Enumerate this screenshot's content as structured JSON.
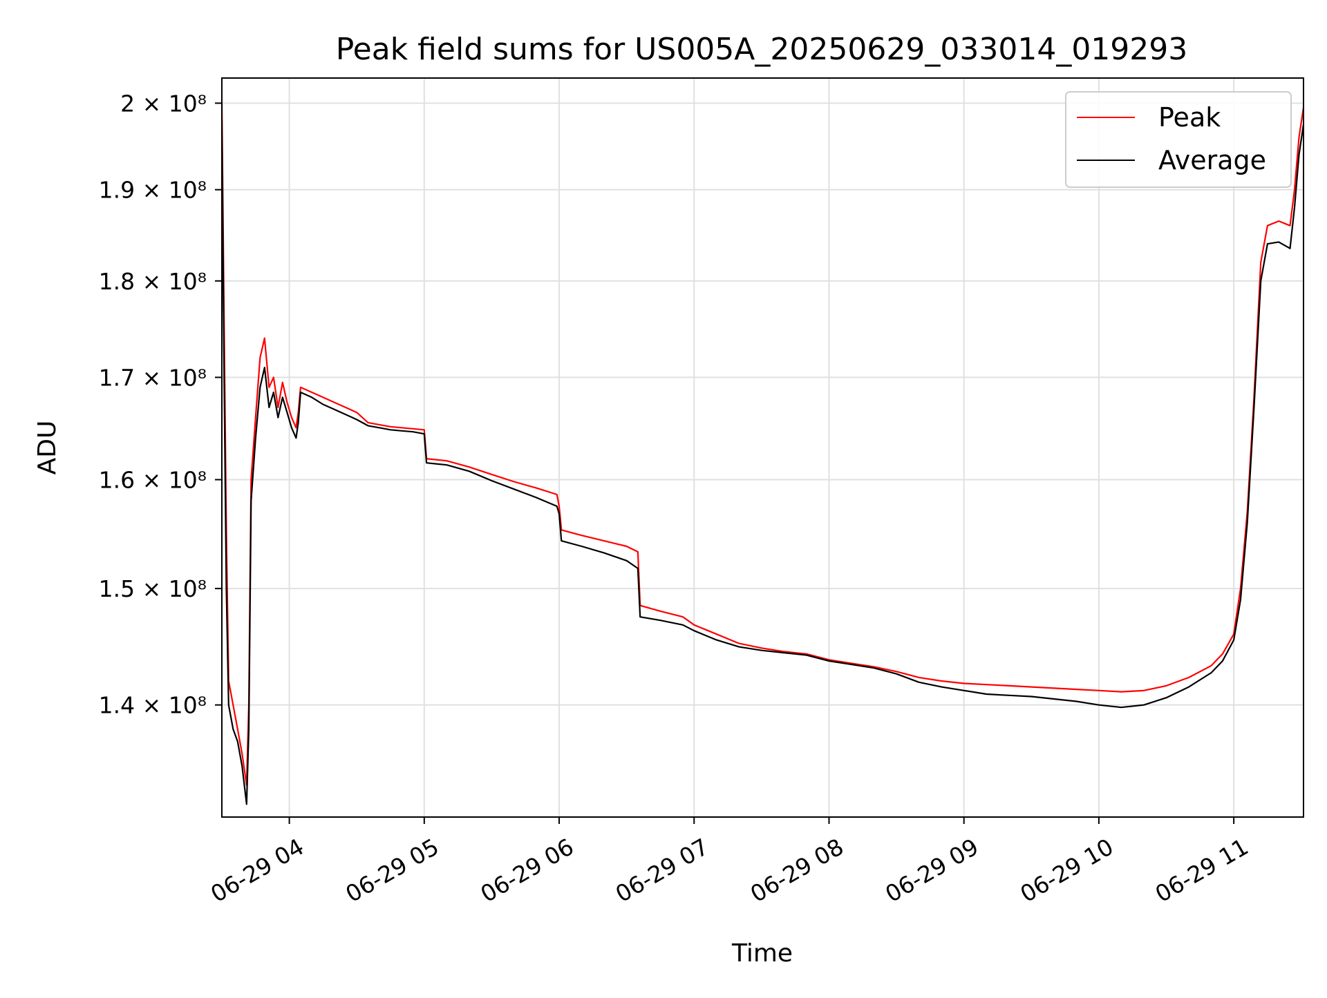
{
  "chart_data": {
    "type": "line",
    "title": "Peak field sums for US005A_20250629_033014_019293",
    "xlabel": "Time",
    "ylabel": "ADU",
    "y_scale": "log",
    "ylim": [
      131000000,
      203000000
    ],
    "xlim": [
      "06-29 03:30",
      "06-29 11:31"
    ],
    "grid": true,
    "legend_position": "top-right",
    "x_ticks": [
      {
        "value": "06-29 04:00",
        "label": "06-29 04"
      },
      {
        "value": "06-29 05:00",
        "label": "06-29 05"
      },
      {
        "value": "06-29 06:00",
        "label": "06-29 06"
      },
      {
        "value": "06-29 07:00",
        "label": "06-29 07"
      },
      {
        "value": "06-29 08:00",
        "label": "06-29 08"
      },
      {
        "value": "06-29 09:00",
        "label": "06-29 09"
      },
      {
        "value": "06-29 10:00",
        "label": "06-29 10"
      },
      {
        "value": "06-29 11:00",
        "label": "06-29 11"
      }
    ],
    "y_ticks": [
      {
        "value": 140000000,
        "label": "1.4 × 10⁸"
      },
      {
        "value": 150000000,
        "label": "1.5 × 10⁸"
      },
      {
        "value": 160000000,
        "label": "1.6 × 10⁸"
      },
      {
        "value": 170000000,
        "label": "1.7 × 10⁸"
      },
      {
        "value": 180000000,
        "label": "1.8 × 10⁸"
      },
      {
        "value": 190000000,
        "label": "1.9 × 10⁸"
      },
      {
        "value": 200000000,
        "label": "2 × 10⁸"
      }
    ],
    "series": [
      {
        "name": "Peak",
        "color": "#ff0000",
        "points": [
          [
            "06-29 03:30",
            200000000
          ],
          [
            "06-29 03:31",
            175000000
          ],
          [
            "06-29 03:32",
            155000000
          ],
          [
            "06-29 03:33",
            142000000
          ],
          [
            "06-29 03:35",
            140000000
          ],
          [
            "06-29 03:37",
            138000000
          ],
          [
            "06-29 03:39",
            136000000
          ],
          [
            "06-29 03:41",
            133500000
          ],
          [
            "06-29 03:42",
            140000000
          ],
          [
            "06-29 03:43",
            160000000
          ],
          [
            "06-29 03:45",
            166000000
          ],
          [
            "06-29 03:47",
            172000000
          ],
          [
            "06-29 03:49",
            174000000
          ],
          [
            "06-29 03:51",
            169000000
          ],
          [
            "06-29 03:53",
            170000000
          ],
          [
            "06-29 03:55",
            167000000
          ],
          [
            "06-29 03:57",
            169500000
          ],
          [
            "06-29 03:59",
            167500000
          ],
          [
            "06-29 04:01",
            166000000
          ],
          [
            "06-29 04:03",
            165000000
          ],
          [
            "06-29 04:04",
            166500000
          ],
          [
            "06-29 04:05",
            169000000
          ],
          [
            "06-29 04:10",
            168500000
          ],
          [
            "06-29 04:15",
            168000000
          ],
          [
            "06-29 04:20",
            167500000
          ],
          [
            "06-29 04:25",
            167000000
          ],
          [
            "06-29 04:30",
            166500000
          ],
          [
            "06-29 04:35",
            165500000
          ],
          [
            "06-29 04:40",
            165300000
          ],
          [
            "06-29 04:45",
            165100000
          ],
          [
            "06-29 04:50",
            165000000
          ],
          [
            "06-29 04:55",
            164900000
          ],
          [
            "06-29 05:00",
            164800000
          ],
          [
            "06-29 05:01",
            162000000
          ],
          [
            "06-29 05:10",
            161800000
          ],
          [
            "06-29 05:20",
            161200000
          ],
          [
            "06-29 05:30",
            160500000
          ],
          [
            "06-29 05:40",
            159800000
          ],
          [
            "06-29 05:50",
            159200000
          ],
          [
            "06-29 05:59",
            158600000
          ],
          [
            "06-29 06:00",
            157500000
          ],
          [
            "06-29 06:01",
            155300000
          ],
          [
            "06-29 06:10",
            154800000
          ],
          [
            "06-29 06:20",
            154300000
          ],
          [
            "06-29 06:30",
            153800000
          ],
          [
            "06-29 06:35",
            153300000
          ],
          [
            "06-29 06:36",
            148500000
          ],
          [
            "06-29 06:45",
            148000000
          ],
          [
            "06-29 06:55",
            147500000
          ],
          [
            "06-29 07:00",
            146800000
          ],
          [
            "06-29 07:10",
            146000000
          ],
          [
            "06-29 07:20",
            145200000
          ],
          [
            "06-29 07:30",
            144800000
          ],
          [
            "06-29 07:40",
            144500000
          ],
          [
            "06-29 07:50",
            144300000
          ],
          [
            "06-29 08:00",
            143800000
          ],
          [
            "06-29 08:10",
            143500000
          ],
          [
            "06-29 08:20",
            143200000
          ],
          [
            "06-29 08:30",
            142800000
          ],
          [
            "06-29 08:40",
            142300000
          ],
          [
            "06-29 08:50",
            142000000
          ],
          [
            "06-29 09:00",
            141800000
          ],
          [
            "06-29 09:10",
            141700000
          ],
          [
            "06-29 09:20",
            141600000
          ],
          [
            "06-29 09:30",
            141500000
          ],
          [
            "06-29 09:40",
            141400000
          ],
          [
            "06-29 09:50",
            141300000
          ],
          [
            "06-29 10:00",
            141200000
          ],
          [
            "06-29 10:10",
            141100000
          ],
          [
            "06-29 10:20",
            141200000
          ],
          [
            "06-29 10:30",
            141600000
          ],
          [
            "06-29 10:40",
            142300000
          ],
          [
            "06-29 10:50",
            143300000
          ],
          [
            "06-29 10:55",
            144300000
          ],
          [
            "06-29 11:00",
            146000000
          ],
          [
            "06-29 11:03",
            150000000
          ],
          [
            "06-29 11:06",
            157000000
          ],
          [
            "06-29 11:09",
            168000000
          ],
          [
            "06-29 11:12",
            182000000
          ],
          [
            "06-29 11:15",
            186000000
          ],
          [
            "06-29 11:20",
            186500000
          ],
          [
            "06-29 11:25",
            186000000
          ],
          [
            "06-29 11:27",
            190000000
          ],
          [
            "06-29 11:29",
            196000000
          ],
          [
            "06-29 11:31",
            199500000
          ]
        ]
      },
      {
        "name": "Average",
        "color": "#000000",
        "points": [
          [
            "06-29 03:30",
            198000000
          ],
          [
            "06-29 03:31",
            170000000
          ],
          [
            "06-29 03:32",
            150000000
          ],
          [
            "06-29 03:33",
            140000000
          ],
          [
            "06-29 03:35",
            138000000
          ],
          [
            "06-29 03:37",
            137000000
          ],
          [
            "06-29 03:39",
            135000000
          ],
          [
            "06-29 03:41",
            132000000
          ],
          [
            "06-29 03:42",
            138000000
          ],
          [
            "06-29 03:43",
            158000000
          ],
          [
            "06-29 03:45",
            164000000
          ],
          [
            "06-29 03:47",
            169000000
          ],
          [
            "06-29 03:49",
            171000000
          ],
          [
            "06-29 03:51",
            167000000
          ],
          [
            "06-29 03:53",
            168500000
          ],
          [
            "06-29 03:55",
            166000000
          ],
          [
            "06-29 03:57",
            168000000
          ],
          [
            "06-29 03:59",
            166500000
          ],
          [
            "06-29 04:01",
            165000000
          ],
          [
            "06-29 04:03",
            164000000
          ],
          [
            "06-29 04:04",
            165500000
          ],
          [
            "06-29 04:05",
            168500000
          ],
          [
            "06-29 04:10",
            168000000
          ],
          [
            "06-29 04:15",
            167300000
          ],
          [
            "06-29 04:20",
            166800000
          ],
          [
            "06-29 04:25",
            166300000
          ],
          [
            "06-29 04:30",
            165800000
          ],
          [
            "06-29 04:35",
            165200000
          ],
          [
            "06-29 04:40",
            165000000
          ],
          [
            "06-29 04:45",
            164800000
          ],
          [
            "06-29 04:50",
            164700000
          ],
          [
            "06-29 04:55",
            164600000
          ],
          [
            "06-29 05:00",
            164400000
          ],
          [
            "06-29 05:01",
            161600000
          ],
          [
            "06-29 05:10",
            161400000
          ],
          [
            "06-29 05:20",
            160800000
          ],
          [
            "06-29 05:30",
            159900000
          ],
          [
            "06-29 05:40",
            159100000
          ],
          [
            "06-29 05:50",
            158300000
          ],
          [
            "06-29 05:59",
            157500000
          ],
          [
            "06-29 06:00",
            156800000
          ],
          [
            "06-29 06:01",
            154300000
          ],
          [
            "06-29 06:10",
            153800000
          ],
          [
            "06-29 06:20",
            153200000
          ],
          [
            "06-29 06:30",
            152500000
          ],
          [
            "06-29 06:35",
            151800000
          ],
          [
            "06-29 06:36",
            147500000
          ],
          [
            "06-29 06:45",
            147200000
          ],
          [
            "06-29 06:55",
            146800000
          ],
          [
            "06-29 07:00",
            146300000
          ],
          [
            "06-29 07:10",
            145500000
          ],
          [
            "06-29 07:20",
            144900000
          ],
          [
            "06-29 07:30",
            144600000
          ],
          [
            "06-29 07:40",
            144400000
          ],
          [
            "06-29 07:50",
            144200000
          ],
          [
            "06-29 08:00",
            143700000
          ],
          [
            "06-29 08:10",
            143400000
          ],
          [
            "06-29 08:20",
            143100000
          ],
          [
            "06-29 08:30",
            142600000
          ],
          [
            "06-29 08:40",
            141900000
          ],
          [
            "06-29 08:50",
            141500000
          ],
          [
            "06-29 09:00",
            141200000
          ],
          [
            "06-29 09:10",
            140900000
          ],
          [
            "06-29 09:20",
            140800000
          ],
          [
            "06-29 09:30",
            140700000
          ],
          [
            "06-29 09:40",
            140500000
          ],
          [
            "06-29 09:50",
            140300000
          ],
          [
            "06-29 10:00",
            140000000
          ],
          [
            "06-29 10:10",
            139800000
          ],
          [
            "06-29 10:20",
            140000000
          ],
          [
            "06-29 10:30",
            140600000
          ],
          [
            "06-29 10:40",
            141500000
          ],
          [
            "06-29 10:50",
            142700000
          ],
          [
            "06-29 10:55",
            143700000
          ],
          [
            "06-29 11:00",
            145500000
          ],
          [
            "06-29 11:03",
            149000000
          ],
          [
            "06-29 11:06",
            156000000
          ],
          [
            "06-29 11:09",
            167000000
          ],
          [
            "06-29 11:12",
            180000000
          ],
          [
            "06-29 11:15",
            184000000
          ],
          [
            "06-29 11:20",
            184200000
          ],
          [
            "06-29 11:25",
            183500000
          ],
          [
            "06-29 11:27",
            188000000
          ],
          [
            "06-29 11:29",
            194000000
          ],
          [
            "06-29 11:31",
            197500000
          ]
        ]
      }
    ]
  }
}
